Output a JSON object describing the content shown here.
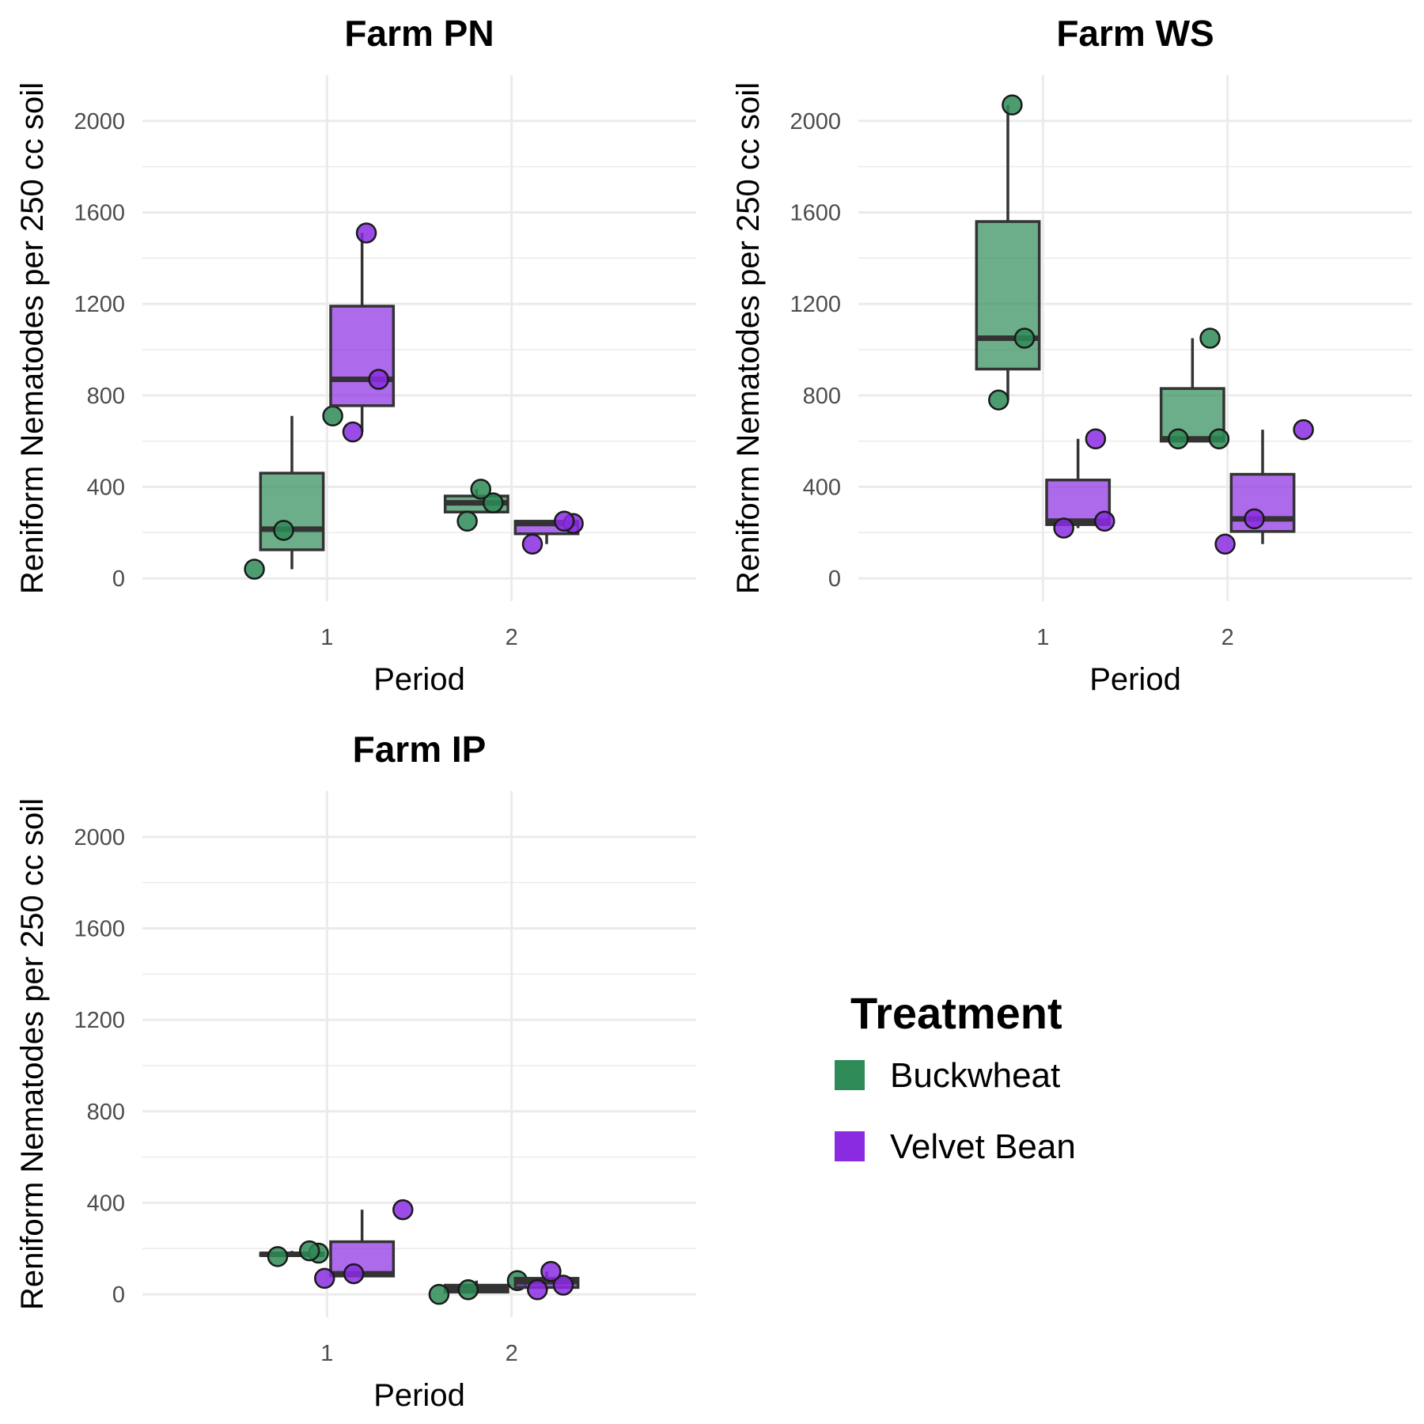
{
  "chart_data": [
    {
      "type": "box",
      "title": "Farm PN",
      "xlabel": "Period",
      "ylabel": "Reniform Nematodes per 250 cc soil",
      "categories": [
        "1",
        "2"
      ],
      "ylim": [
        -100,
        2200
      ],
      "yticks": [
        0,
        400,
        800,
        1200,
        1600,
        2000
      ],
      "grid": true,
      "series": [
        {
          "name": "Buckwheat",
          "boxes": [
            {
              "period": "1",
              "q1": 125,
              "median": 215,
              "q3": 460,
              "whisker_low": 40,
              "whisker_high": 710,
              "points": [
                40,
                210,
                710
              ]
            },
            {
              "period": "2",
              "q1": 290,
              "median": 330,
              "q3": 360,
              "whisker_low": 290,
              "whisker_high": 390,
              "points": [
                250,
                330,
                390
              ]
            }
          ]
        },
        {
          "name": "Velvet Bean",
          "boxes": [
            {
              "period": "1",
              "q1": 755,
              "median": 870,
              "q3": 1190,
              "whisker_low": 640,
              "whisker_high": 1510,
              "points": [
                640,
                870,
                1510
              ]
            },
            {
              "period": "2",
              "q1": 195,
              "median": 240,
              "q3": 250,
              "whisker_low": 150,
              "whisker_high": 250,
              "points": [
                150,
                240,
                250
              ]
            }
          ]
        }
      ]
    },
    {
      "type": "box",
      "title": "Farm WS",
      "xlabel": "Period",
      "ylabel": "Reniform Nematodes per 250 cc soil",
      "categories": [
        "1",
        "2"
      ],
      "ylim": [
        -100,
        2200
      ],
      "yticks": [
        0,
        400,
        800,
        1200,
        1600,
        2000
      ],
      "grid": true,
      "series": [
        {
          "name": "Buckwheat",
          "boxes": [
            {
              "period": "1",
              "q1": 915,
              "median": 1050,
              "q3": 1560,
              "whisker_low": 780,
              "whisker_high": 2070,
              "points": [
                780,
                1050,
                2070
              ]
            },
            {
              "period": "2",
              "q1": 600,
              "median": 610,
              "q3": 830,
              "whisker_low": 600,
              "whisker_high": 1050,
              "points": [
                610,
                610,
                1050
              ]
            }
          ]
        },
        {
          "name": "Velvet Bean",
          "boxes": [
            {
              "period": "1",
              "q1": 235,
              "median": 250,
              "q3": 430,
              "whisker_low": 220,
              "whisker_high": 610,
              "points": [
                220,
                250,
                610
              ]
            },
            {
              "period": "2",
              "q1": 205,
              "median": 260,
              "q3": 455,
              "whisker_low": 150,
              "whisker_high": 650,
              "points": [
                150,
                260,
                650
              ]
            }
          ]
        }
      ]
    },
    {
      "type": "box",
      "title": "Farm IP",
      "xlabel": "Period",
      "ylabel": "Reniform Nematodes per 250 cc soil",
      "categories": [
        "1",
        "2"
      ],
      "ylim": [
        -100,
        2200
      ],
      "yticks": [
        0,
        400,
        800,
        1200,
        1600,
        2000
      ],
      "grid": true,
      "series": [
        {
          "name": "Buckwheat",
          "boxes": [
            {
              "period": "1",
              "q1": 170,
              "median": 175,
              "q3": 180,
              "whisker_low": 165,
              "whisker_high": 190,
              "points": [
                165,
                180,
                190
              ]
            },
            {
              "period": "2",
              "q1": 10,
              "median": 25,
              "q3": 40,
              "whisker_low": 0,
              "whisker_high": 60,
              "points": [
                0,
                20,
                60
              ]
            }
          ]
        },
        {
          "name": "Velvet Bean",
          "boxes": [
            {
              "period": "1",
              "q1": 80,
              "median": 90,
              "q3": 230,
              "whisker_low": 70,
              "whisker_high": 370,
              "points": [
                70,
                90,
                370
              ]
            },
            {
              "period": "2",
              "q1": 30,
              "median": 55,
              "q3": 70,
              "whisker_low": 20,
              "whisker_high": 100,
              "points": [
                20,
                40,
                100
              ]
            }
          ]
        }
      ]
    }
  ],
  "legend": {
    "title": "Treatment",
    "items": [
      {
        "label": "Buckwheat",
        "color": "#2e8b57"
      },
      {
        "label": "Velvet Bean",
        "color": "#8a2be2"
      }
    ]
  },
  "colors": {
    "Buckwheat": "#2e8b57",
    "Velvet Bean": "#8a2be2",
    "grid": "#ebebeb",
    "outline": "#333333"
  }
}
